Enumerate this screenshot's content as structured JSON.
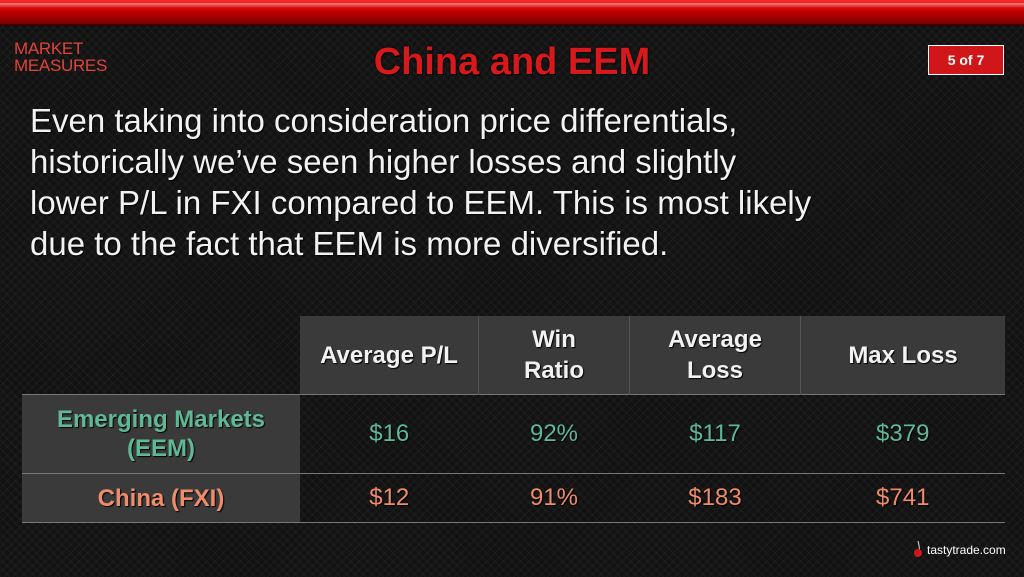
{
  "slide": {
    "logo_line1": "MARKET",
    "logo_line2": "MEASURES",
    "title": "China and EEM",
    "page_indicator": "5 of 7",
    "body_lines": [
      "Even taking into consideration price differentials,",
      "historically we’ve seen higher losses and slightly",
      "lower P/L in FXI compared to EEM. This is most likely",
      "due to the fact that EEM is more diversified."
    ],
    "brand": "tastytrade.com"
  },
  "table": {
    "headers": [
      [
        "Average P/L"
      ],
      [
        "Win",
        "Ratio"
      ],
      [
        "Average",
        "Loss"
      ],
      [
        "Max Loss"
      ]
    ],
    "rows": [
      {
        "label": [
          "Emerging Markets",
          "(EEM)"
        ],
        "values": [
          "$16",
          "92%",
          "$117",
          "$379"
        ]
      },
      {
        "label": [
          "China (FXI)"
        ],
        "values": [
          "$12",
          "91%",
          "$183",
          "$741"
        ]
      }
    ]
  },
  "colors": {
    "title_red": "#d7191c",
    "eem_green": "#5fb996",
    "fxi_orange": "#f08c6a",
    "badge_red": "#d1161a"
  }
}
